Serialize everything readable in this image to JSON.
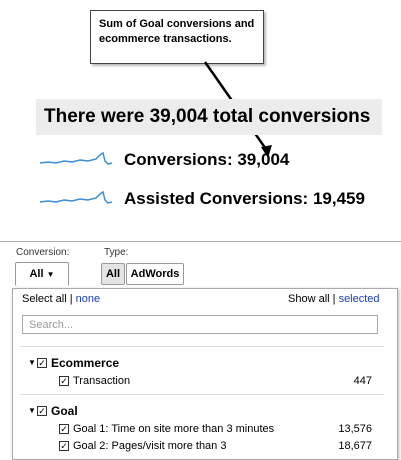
{
  "callout": {
    "text": "Sum of Goal conversions and ecommerce transactions."
  },
  "summary": {
    "text": "There were 39,004 total conversions"
  },
  "metrics": [
    {
      "label": "Conversions: 39,004"
    },
    {
      "label": "Assisted Conversions: 19,459"
    }
  ],
  "filters": {
    "conversion_label": "Conversion:",
    "conversion_value": "All",
    "type_label": "Type:",
    "type_options": [
      "All",
      "AdWords"
    ]
  },
  "dropdown": {
    "select_all": "Select all",
    "none": "none",
    "show_all": "Show all",
    "selected": "selected",
    "separator": "|",
    "search_placeholder": "Search...",
    "groups": [
      {
        "name": "Ecommerce",
        "items": [
          {
            "label": "Transaction",
            "value": "447"
          }
        ]
      },
      {
        "name": "Goal",
        "items": [
          {
            "label": "Goal 1: Time on site more than 3 minutes",
            "value": "13,576"
          },
          {
            "label": "Goal 2: Pages/visit more than 3",
            "value": "18,677"
          }
        ]
      }
    ]
  },
  "colors": {
    "sparkline": "#3a8fd6",
    "link": "#1a3fb0",
    "summary_bg": "#ececec"
  }
}
